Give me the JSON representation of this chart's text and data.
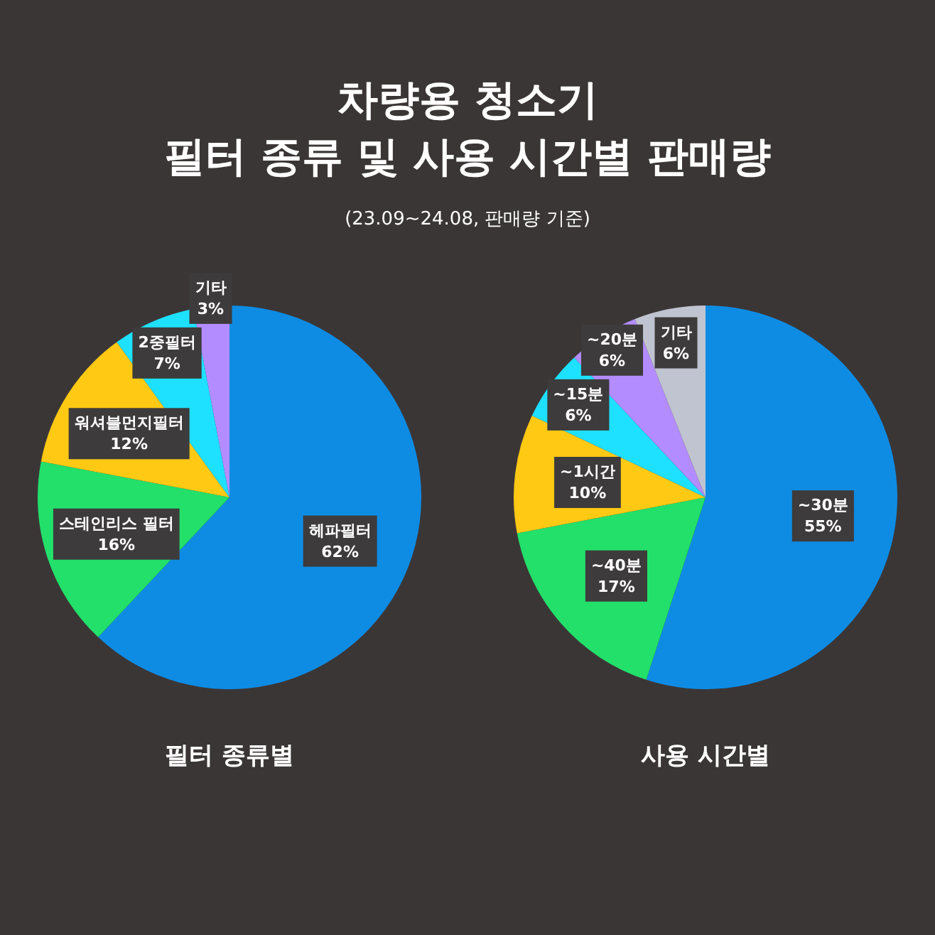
{
  "chart_data": [
    {
      "type": "other",
      "title": "차량용 청소기\n필터 종류 및 사용 시간별 판매량",
      "annotations": [
        "(23.09~24.08, 판매량 기준)"
      ]
    },
    {
      "type": "pie",
      "title": "필터 종류별",
      "categories": [
        "헤파필터",
        "스테인리스 필터",
        "워셔블먼지필터",
        "2중필터",
        "기타"
      ],
      "values": [
        62,
        16,
        12,
        7,
        3
      ],
      "value_labels": [
        "62%",
        "16%",
        "12%",
        "7%",
        "3%"
      ],
      "colors": [
        "#0e8ce4",
        "#22e06a",
        "#ffc914",
        "#1ee0ff",
        "#b38cff"
      ]
    },
    {
      "type": "pie",
      "title": "사용 시간별",
      "categories": [
        "~30분",
        "~40분",
        "~1시간",
        "~15분",
        "~20분",
        "기타"
      ],
      "values": [
        55,
        17,
        10,
        6,
        6,
        6
      ],
      "value_labels": [
        "55%",
        "17%",
        "10%",
        "6%",
        "6%",
        "6%"
      ],
      "colors": [
        "#0e8ce4",
        "#22e06a",
        "#ffc914",
        "#1ee0ff",
        "#b38cff",
        "#c0c4d0"
      ]
    }
  ]
}
